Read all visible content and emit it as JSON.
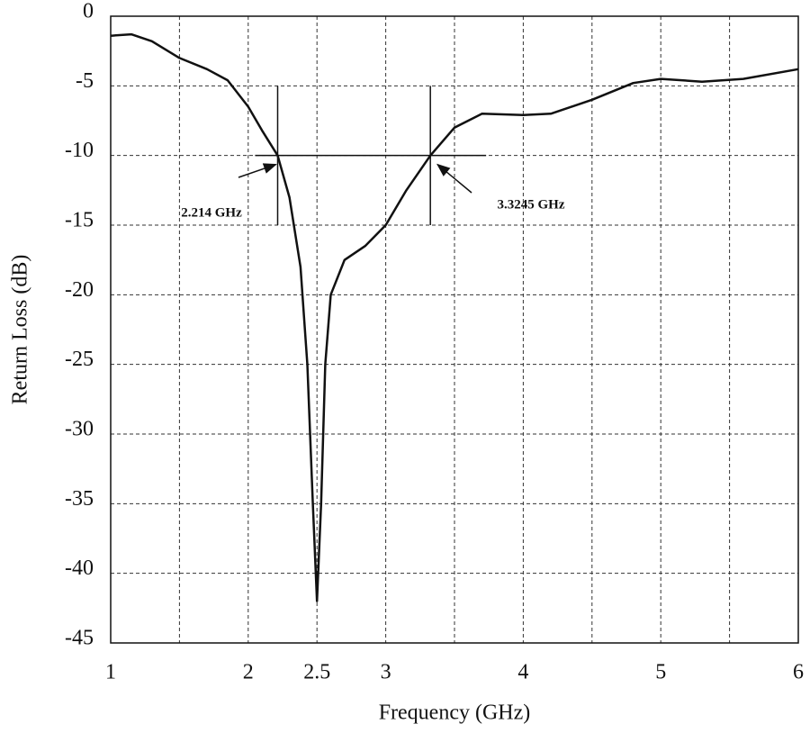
{
  "chart_data": {
    "type": "line",
    "x_label": "Frequency (GHz)",
    "y_label": "Return Loss (dB)",
    "x": [
      1,
      1.15,
      1.3,
      1.5,
      1.7,
      1.85,
      2.0,
      2.1,
      2.214,
      2.3,
      2.38,
      2.43,
      2.47,
      2.5,
      2.53,
      2.56,
      2.6,
      2.7,
      2.85,
      3.0,
      3.15,
      3.3245,
      3.5,
      3.7,
      4.0,
      4.2,
      4.5,
      4.8,
      5.0,
      5.3,
      5.6,
      6.0
    ],
    "series": [
      {
        "color": "#111111",
        "values": [
          -1.4,
          -1.3,
          -1.8,
          -3.0,
          -3.8,
          -4.6,
          -6.5,
          -8.2,
          -10,
          -13,
          -18,
          -25,
          -35,
          -42,
          -35,
          -25,
          -20,
          -17.5,
          -16.5,
          -15,
          -12.5,
          -10,
          -8,
          -7.0,
          -7.1,
          -7.0,
          -6.0,
          -4.8,
          -4.5,
          -4.7,
          -4.5,
          -3.8
        ]
      }
    ],
    "xlim": [
      1,
      6
    ],
    "ylim": [
      -45,
      0
    ],
    "xticks": [
      1,
      2,
      2.5,
      3,
      4,
      5,
      6
    ],
    "yticks": [
      0,
      -5,
      -10,
      -15,
      -20,
      -25,
      -30,
      -35,
      -40,
      -45
    ],
    "grid": true,
    "reference_level": -10,
    "markers": [
      {
        "x": 2.214,
        "label": "2.214 GHz"
      },
      {
        "x": 3.3245,
        "label": "3.3245 GHz"
      }
    ]
  }
}
